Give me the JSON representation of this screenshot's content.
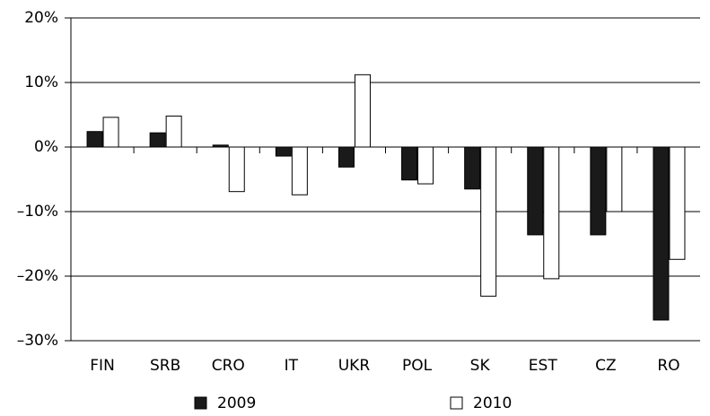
{
  "chart_data": {
    "type": "bar",
    "categories": [
      "FIN",
      "SRB",
      "CRO",
      "IT",
      "UKR",
      "POL",
      "SK",
      "EST",
      "CZ",
      "RO"
    ],
    "series": [
      {
        "name": "2009",
        "color": "#1a1a1a",
        "values": [
          2.4,
          2.2,
          0.3,
          -1.4,
          -3.1,
          -5.1,
          -6.5,
          -13.6,
          -13.6,
          -26.8
        ]
      },
      {
        "name": "2010",
        "color": "#ffffff",
        "values": [
          4.6,
          4.8,
          -6.9,
          -7.4,
          11.2,
          -5.7,
          -23.1,
          -20.4,
          -10.0,
          -17.4
        ]
      }
    ],
    "ylim": [
      -30,
      20
    ],
    "yticks": [
      {
        "value": -30,
        "label": "–30%"
      },
      {
        "value": -20,
        "label": "–20%"
      },
      {
        "value": -10,
        "label": "–10%"
      },
      {
        "value": 0,
        "label": "0%"
      },
      {
        "value": 10,
        "label": "10%"
      },
      {
        "value": 20,
        "label": "20%"
      }
    ],
    "grid": true,
    "legend": "bottom"
  }
}
